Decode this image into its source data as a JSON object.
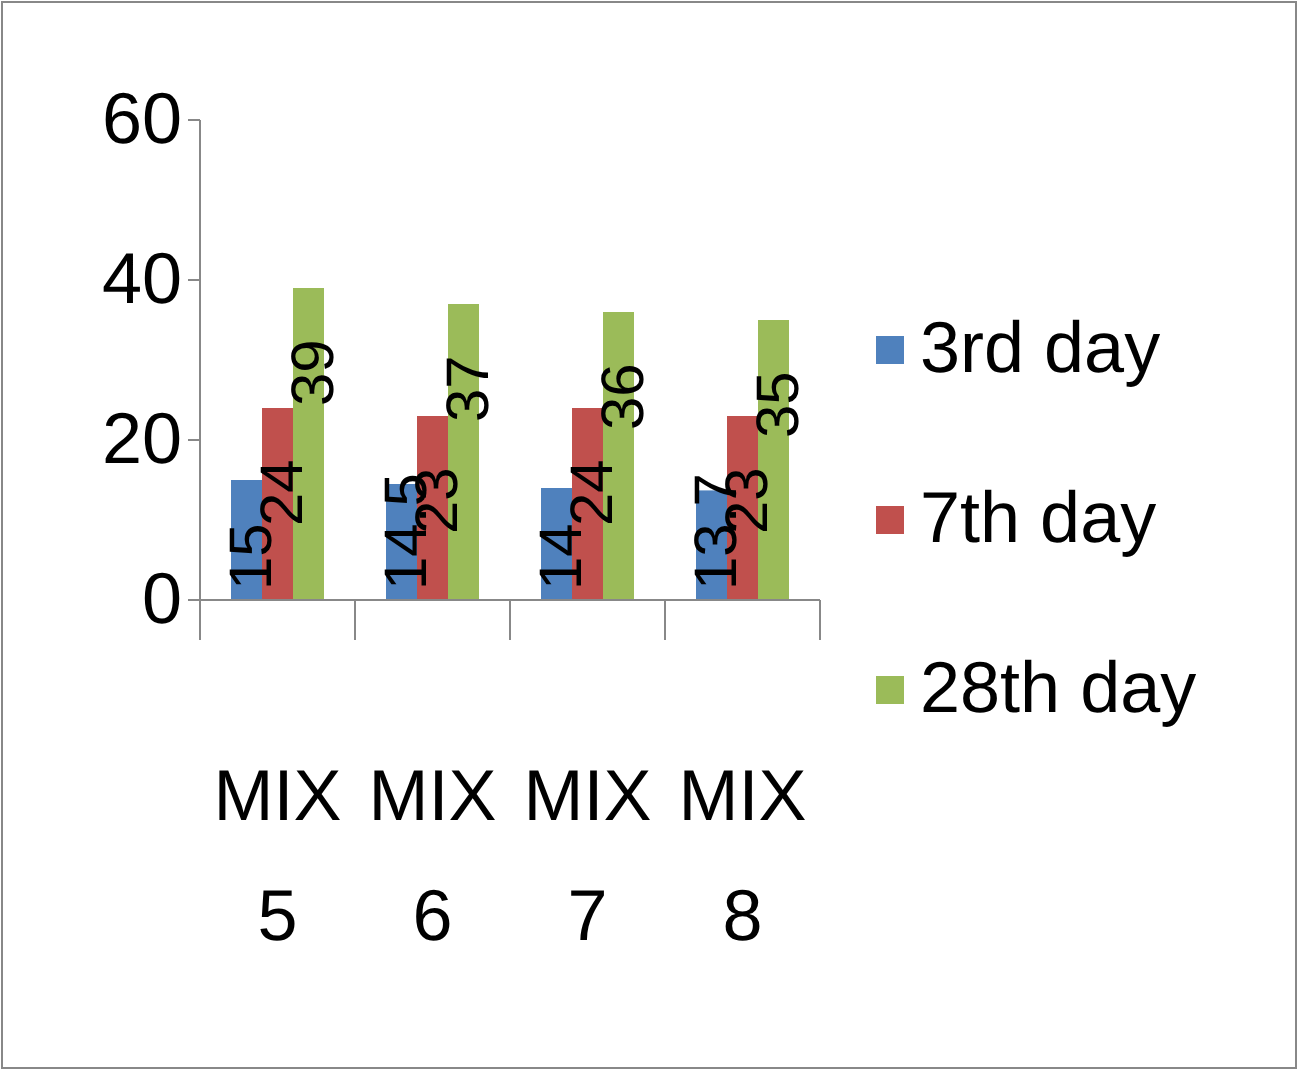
{
  "chart_data": {
    "type": "bar",
    "categories": [
      "MIX 5",
      "MIX 6",
      "MIX 7",
      "MIX 8"
    ],
    "series": [
      {
        "name": "3rd day",
        "color": "#4f81bd",
        "values": [
          15,
          14.5,
          14,
          13.7
        ]
      },
      {
        "name": "7th day",
        "color": "#c0504d",
        "values": [
          24,
          23,
          24,
          23
        ]
      },
      {
        "name": "28th day",
        "color": "#9bbb59",
        "values": [
          39,
          37,
          36,
          35
        ]
      }
    ],
    "ylim": [
      0,
      60
    ],
    "yticks": [
      0,
      20,
      40,
      60
    ],
    "data_labels": true,
    "legend": "right",
    "grid": false
  }
}
